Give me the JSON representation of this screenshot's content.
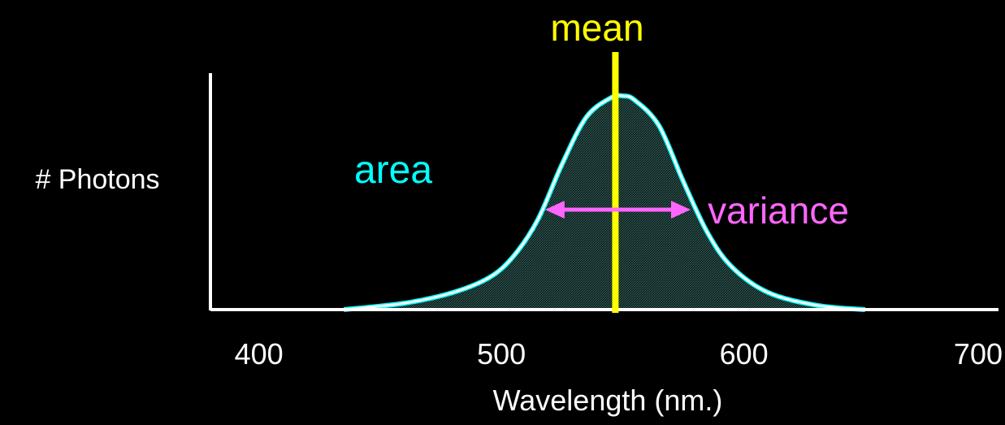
{
  "chart_data": {
    "type": "area",
    "xlabel": "Wavelength (nm.)",
    "ylabel": "# Photons",
    "x_ticks": [
      400,
      500,
      600,
      700
    ],
    "xlim": [
      380,
      705
    ],
    "ylim": [
      0,
      1
    ],
    "series": [
      {
        "x": [
          435,
          460,
          480,
          495,
          505,
          515,
          525,
          535,
          545,
          550,
          555,
          565,
          575,
          585,
          595,
          610,
          630,
          650
        ],
        "y": [
          0.0,
          0.03,
          0.08,
          0.15,
          0.25,
          0.42,
          0.68,
          0.9,
          0.99,
          1.0,
          0.98,
          0.86,
          0.6,
          0.36,
          0.2,
          0.08,
          0.02,
          0.0
        ]
      }
    ],
    "annotations": {
      "mean": {
        "label": "mean",
        "x": 547,
        "color": "#ffff00"
      },
      "area": {
        "label": "area",
        "color": "#00ffff"
      },
      "variance": {
        "label": "variance",
        "x_from": 518,
        "x_to": 578,
        "color": "#ff66ff"
      }
    },
    "colors": {
      "curve": "#ffffff",
      "curve_edge": "#00ffff",
      "axis": "#ffffff",
      "fill": "#1f3a36",
      "text": "#ffffff"
    }
  }
}
